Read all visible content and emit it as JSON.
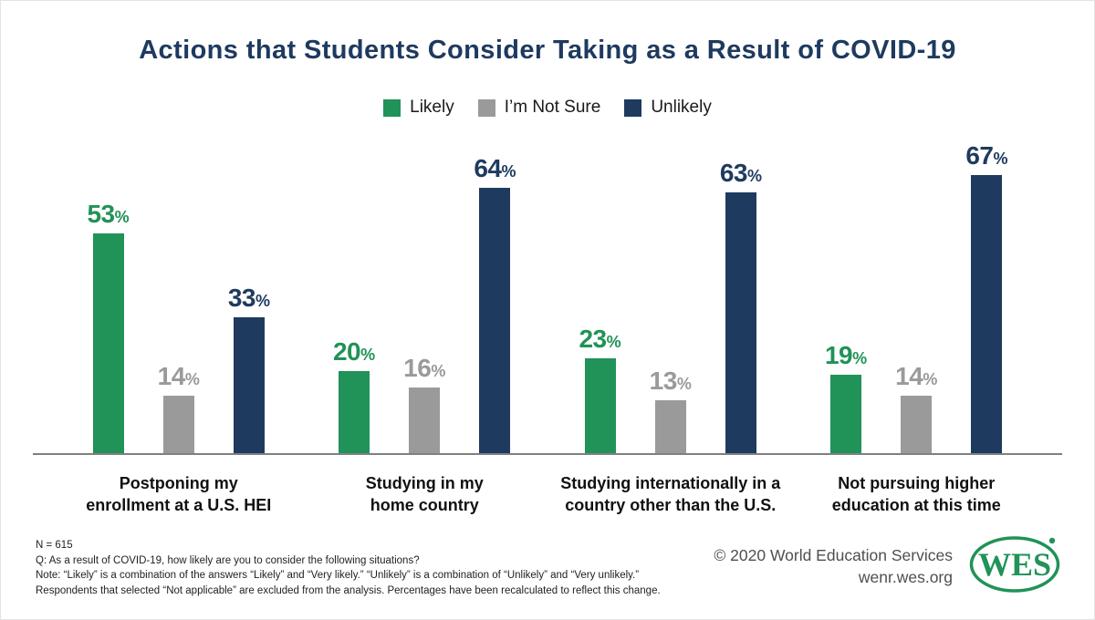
{
  "title": "Actions that Students Consider Taking as a Result of COVID-19",
  "colors": {
    "title_text": "#1e3a5f",
    "likely_green": "#219258",
    "not_sure_gray": "#9a9a9a",
    "unlikely_navy": "#1e3a5f",
    "axis_line": "#808080",
    "brand_green": "#219258",
    "copyright_gray": "#4f4f4f"
  },
  "chart_data": {
    "type": "bar",
    "title": "Actions that Students Consider Taking as a Result of COVID-19",
    "categories": [
      "Postponing my enrollment at a U.S. HEI",
      "Studying in my home country",
      "Studying internationally in a country other than the U.S.",
      "Not pursuing higher education at this time"
    ],
    "category_lines": [
      [
        "Postponing my",
        "enrollment at a U.S. HEI"
      ],
      [
        "Studying in my",
        "home country"
      ],
      [
        "Studying internationally in a",
        "country other than the U.S."
      ],
      [
        "Not pursuing higher",
        "education at this time"
      ]
    ],
    "series": [
      {
        "name": "Likely",
        "color": "#219258",
        "values": [
          53,
          20,
          23,
          19
        ]
      },
      {
        "name": "I’m Not Sure",
        "color": "#9a9a9a",
        "values": [
          14,
          16,
          13,
          14
        ]
      },
      {
        "name": "Unlikely",
        "color": "#1e3a5f",
        "values": [
          33,
          64,
          63,
          67
        ]
      }
    ],
    "value_suffix": "%",
    "ylim": [
      0,
      100
    ],
    "grid": false,
    "legend_position": "top",
    "data_labels": true
  },
  "footnotes": [
    "N = 615",
    "Q: As a result of COVID-19, how likely are you to consider the following situations?",
    "Note: “Likely” is a combination of the answers “Likely” and “Very likely.” “Unlikely” is a combination of “Unlikely” and “Very unlikely.”",
    "Respondents that selected “Not applicable” are excluded from the analysis. Percentages have been recalculated to reflect this change."
  ],
  "copyright": {
    "line1": "© 2020 World Education Services",
    "line2": "wenr.wes.org"
  },
  "logo": {
    "text": "WES"
  }
}
